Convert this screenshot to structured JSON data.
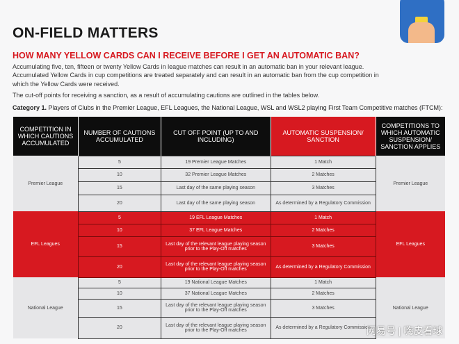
{
  "title": "ON-FIELD MATTERS",
  "subtitle": "HOW MANY YELLOW CARDS CAN I RECEIVE BEFORE I GET AN AUTOMATIC BAN?",
  "paragraph1": "Accumulating five, ten, fifteen or twenty Yellow Cards in league matches can result in an automatic ban in your relevant league. Accumulated Yellow Cards in cup competitions are treated separately and can result in an automatic ban from the cup competition in which the Yellow Cards were received.",
  "paragraph2": "The cut-off points for receiving a sanction, as a result of accumulating cautions are outlined in the tables below.",
  "category_label": "Category 1.",
  "category_text": " Players of Clubs in the Premier League, EFL Leagues, the National League, WSL and WSL2 playing First Team Competitive matches (FTCM):",
  "icon": "yellow-card-hand-icon",
  "colors": {
    "accent": "#d71920",
    "header": "#0d0d0d",
    "grey": "#e6e6e8"
  },
  "table": {
    "headers": [
      "COMPETITION IN WHICH CAUTIONS ACCUMULATED",
      "NUMBER OF CAUTIONS ACCUMULATED",
      "CUT OFF POINT (UP TO AND INCLUDING)",
      "AUTOMATIC SUSPENSION/ SANCTION",
      "COMPETITIONS TO WHICH AUTOMATIC SUSPENSION/ SANCTION APPLIES"
    ],
    "groups": [
      {
        "competition": "Premier League",
        "applies": "Premier League",
        "rows": [
          {
            "cautions": "5",
            "cutoff": "19 Premier League Matches",
            "sanction": "1 Match"
          },
          {
            "cautions": "10",
            "cutoff": "32 Premier League Matches",
            "sanction": "2 Matches"
          },
          {
            "cautions": "15",
            "cutoff": "Last day of the same playing season",
            "sanction": "3 Matches"
          },
          {
            "cautions": "20",
            "cutoff": "Last day of the same playing season",
            "sanction": "As determined by a Regulatory Commission"
          }
        ]
      },
      {
        "competition": "EFL Leagues",
        "applies": "EFL Leagues",
        "rows": [
          {
            "cautions": "5",
            "cutoff": "19 EFL League Matches",
            "sanction": "1 Match"
          },
          {
            "cautions": "10",
            "cutoff": "37 EFL League Matches",
            "sanction": "2 Matches"
          },
          {
            "cautions": "15",
            "cutoff": "Last day of the relevant league playing season prior to the Play-Off matches",
            "sanction": "3 Matches"
          },
          {
            "cautions": "20",
            "cutoff": "Last day of the relevant league playing season prior to the Play-Off matches",
            "sanction": "As determined by a Regulatory Commission"
          }
        ]
      },
      {
        "competition": "National League",
        "applies": "National League",
        "rows": [
          {
            "cautions": "5",
            "cutoff": "19 National League Matches",
            "sanction": "1 Match"
          },
          {
            "cautions": "10",
            "cutoff": "37 National League Matches",
            "sanction": "2 Matches"
          },
          {
            "cautions": "15",
            "cutoff": "Last day of the relevant league playing season prior to the Play-Off matches",
            "sanction": "3 Matches"
          },
          {
            "cautions": "20",
            "cutoff": "Last day of the relevant league playing season prior to the Play-Off matches",
            "sanction": "As determined by a Regulatory Commission"
          }
        ]
      }
    ]
  },
  "watermark": "网易号 | 嗨皮看球"
}
